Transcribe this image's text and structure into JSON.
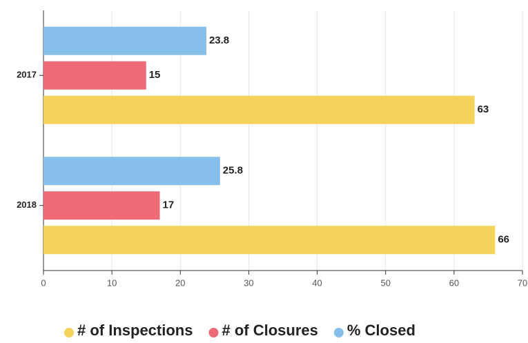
{
  "chart_data": {
    "type": "hbar",
    "categories": [
      "2017",
      "2018"
    ],
    "series": [
      {
        "name": "# of Inspections",
        "color": "#f5d35a",
        "values": [
          63,
          66
        ]
      },
      {
        "name": "# of Closures",
        "color": "#f06b78",
        "values": [
          15,
          17
        ]
      },
      {
        "name": "% Closed",
        "color": "#86c0ea",
        "values": [
          23.8,
          25.8
        ]
      }
    ],
    "xlim": [
      0,
      70
    ],
    "xticks": [
      0,
      10,
      20,
      30,
      40,
      50,
      60,
      70
    ],
    "grid": true,
    "legend": "bottom"
  }
}
